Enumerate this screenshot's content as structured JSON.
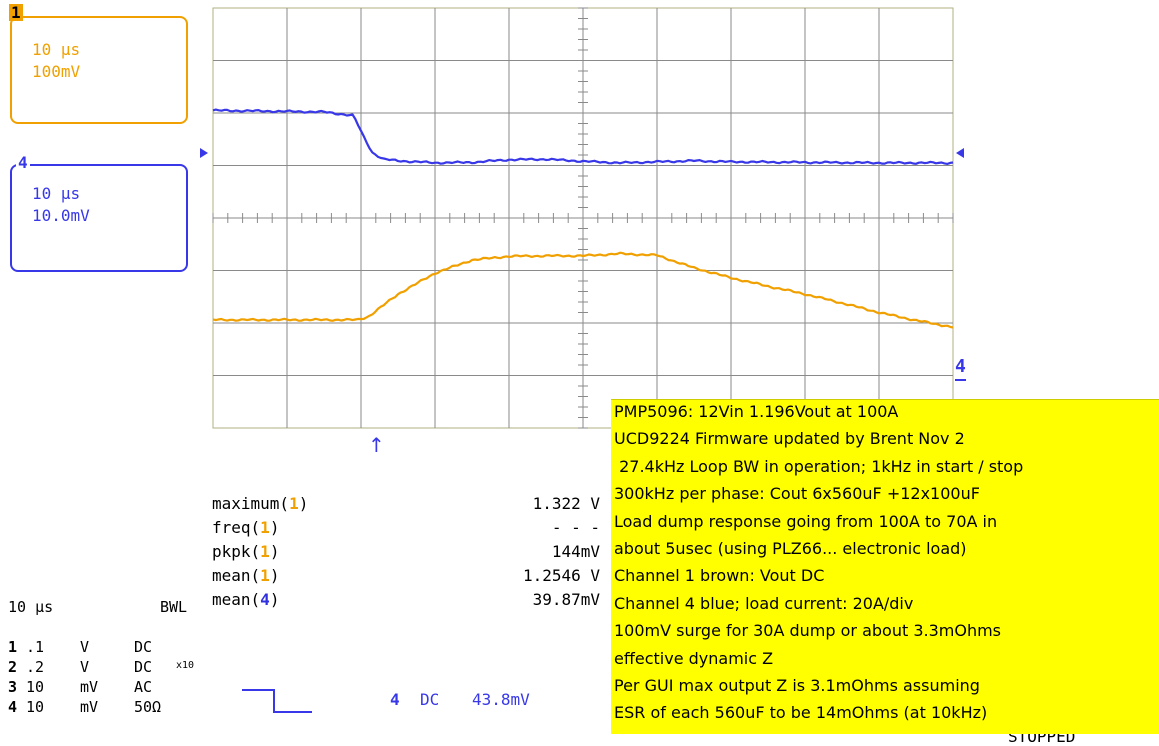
{
  "chart_data": {
    "type": "line",
    "title": "",
    "xlabel": "",
    "ylabel": "",
    "x_divisions": 10,
    "y_divisions": 8,
    "grid": true,
    "series": [
      {
        "name": "4",
        "color": "#3838e8",
        "x": [
          0,
          1.5,
          1.9,
          2.0,
          2.15,
          2.3,
          2.5,
          3.0,
          3.5,
          4.0,
          4.5,
          5.0,
          5.5,
          6.0,
          6.5,
          7.0,
          8.0,
          9.0,
          10.0
        ],
        "y": [
          6.05,
          6.02,
          5.95,
          5.65,
          5.25,
          5.12,
          5.09,
          5.05,
          5.06,
          5.11,
          5.12,
          5.08,
          5.05,
          5.07,
          5.09,
          5.07,
          5.06,
          5.05,
          5.05
        ]
      },
      {
        "name": "1",
        "color": "#f0a000",
        "x": [
          0,
          1.95,
          2.1,
          2.5,
          3.0,
          3.5,
          4.0,
          4.5,
          5.0,
          5.5,
          6.0,
          6.5,
          7.0,
          7.5,
          8.0,
          8.5,
          9.0,
          9.5,
          10.0
        ],
        "y": [
          2.06,
          2.06,
          2.12,
          2.55,
          2.95,
          3.2,
          3.27,
          3.28,
          3.28,
          3.32,
          3.29,
          3.05,
          2.86,
          2.7,
          2.55,
          2.38,
          2.2,
          2.05,
          1.92
        ]
      }
    ]
  },
  "trigger_marker": "↑",
  "right_channel_marker": "4",
  "ch1_box": {
    "badge": "1",
    "timebase": "10 µs",
    "vdiv": "100mV"
  },
  "ch4_box": {
    "badge": "4",
    "timebase": "10 µs",
    "vdiv": "10.0mV"
  },
  "measurements": [
    {
      "fn": "maximum(",
      "ch": "1",
      "close": ")",
      "color": "orange",
      "value": "1.322 V"
    },
    {
      "fn": "freq(",
      "ch": "1",
      "close": ")",
      "color": "orange",
      "value": "- - -"
    },
    {
      "fn": "pkpk(",
      "ch": "1",
      "close": ")",
      "color": "orange",
      "value": "144mV"
    },
    {
      "fn": "mean(",
      "ch": "1",
      "close": ")",
      "color": "orange",
      "value": "1.2546 V"
    },
    {
      "fn": "mean(",
      "ch": "4",
      "close": ")",
      "color": "blue",
      "value": "39.87mV"
    }
  ],
  "timebase_label": "10 µs",
  "bwl_label": "BWL",
  "channel_settings": [
    {
      "num": "1",
      "scale": ".1",
      "unit": "V",
      "coupling": "DC",
      "extra": ""
    },
    {
      "num": "2",
      "scale": ".2",
      "unit": "V",
      "coupling": "DC",
      "extra": "x10"
    },
    {
      "num": "3",
      "scale": "10",
      "unit": "mV",
      "coupling": "AC",
      "extra": ""
    },
    {
      "num": "4",
      "scale": "10",
      "unit": "mV",
      "coupling": "50Ω",
      "extra": ""
    }
  ],
  "trigger_info": {
    "channel": "4",
    "coupling": "DC",
    "level": "43.8mV"
  },
  "status_cut": "STOPPED",
  "note_lines": [
    "PMP5096: 12Vin 1.196Vout at 100A",
    "UCD9224 Firmware updated by Brent Nov 2",
    " 27.4kHz Loop BW in operation; 1kHz in start / stop",
    "300kHz per phase: Cout 6x560uF +12x100uF",
    "Load dump response going from 100A to 70A in",
    "about 5usec (using PLZ66... electronic load)",
    "Channel 1 brown: Vout DC",
    "Channel 4 blue; load current: 20A/div",
    "100mV surge for 30A dump or about 3.3mOhms",
    "effective dynamic Z",
    "Per GUI max output Z is 3.1mOhms assuming",
    "ESR of each 560uF to be 14mOhms (at 10kHz)"
  ]
}
